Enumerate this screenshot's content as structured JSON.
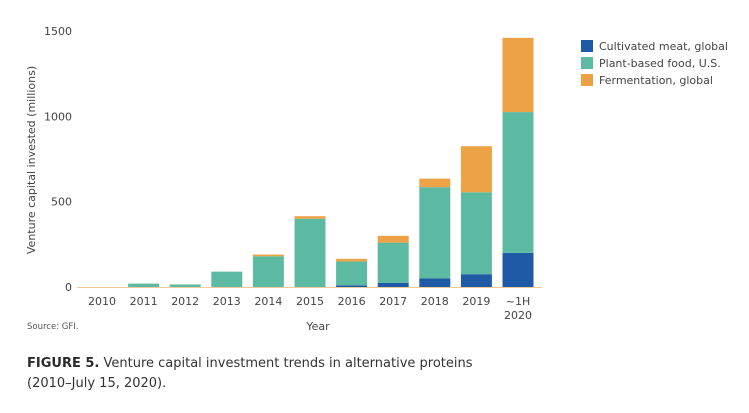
{
  "chart_data": {
    "type": "bar",
    "stacked": true,
    "categories": [
      "2010",
      "2011",
      "2012",
      "2013",
      "2014",
      "2015",
      "2016",
      "2017",
      "2018",
      "2019",
      "~1H|2020"
    ],
    "series": [
      {
        "name": "Cultivated meat, global",
        "color": "#1f5aa6",
        "values": [
          0,
          0,
          0,
          0,
          0,
          0,
          10,
          25,
          50,
          75,
          200
        ]
      },
      {
        "name": "Plant-based food, U.S.",
        "color": "#5cbaa3",
        "values": [
          0,
          20,
          15,
          90,
          180,
          400,
          140,
          235,
          535,
          480,
          825
        ]
      },
      {
        "name": "Fermentation, global",
        "color": "#eda246",
        "values": [
          0,
          0,
          0,
          0,
          10,
          15,
          15,
          40,
          50,
          270,
          435
        ]
      }
    ],
    "xlabel": "Year",
    "ylabel": "Venture capital invested (millions)",
    "ylim": [
      0,
      1500
    ],
    "yticks": [
      "0",
      "500",
      "1000",
      "1500"
    ],
    "ytick_values": [
      0,
      500,
      1000,
      1500
    ],
    "grid": false,
    "legend": "top-right",
    "axis_color": "#f0c99a",
    "source": "Source: GFI."
  },
  "caption": {
    "label": "FIGURE 5.",
    "text": " Venture capital investment trends in alternative proteins",
    "text2": "(2010–July 15, 2020)."
  }
}
